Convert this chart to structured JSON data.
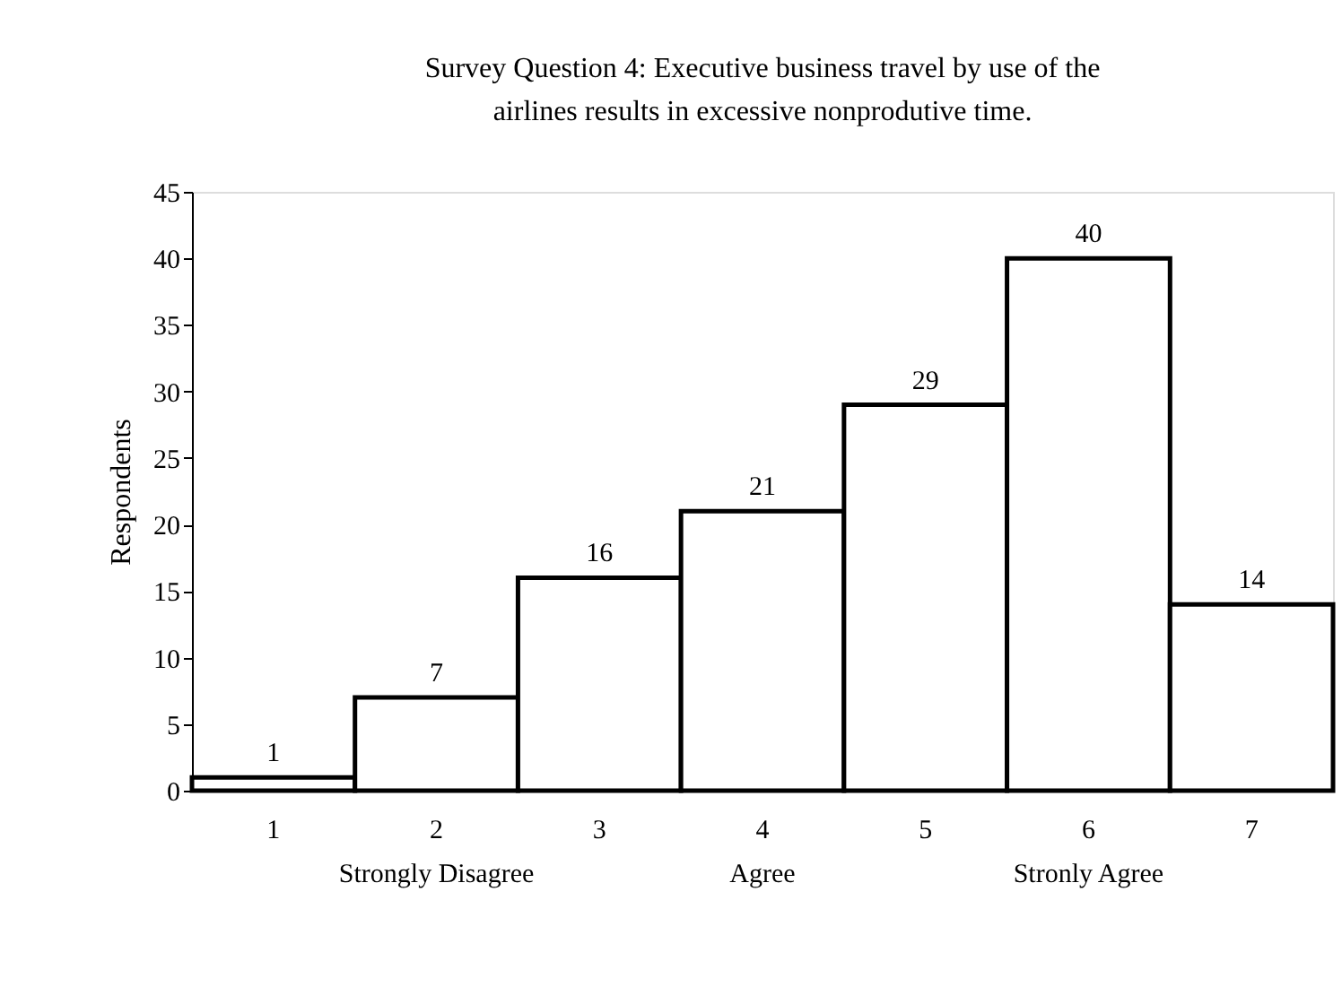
{
  "chart_data": {
    "type": "bar",
    "title": [
      "Survey Question 4: Executive business travel by use of the",
      "airlines results in excessive nonprodutive time."
    ],
    "ylabel": "Respondents",
    "categories": [
      "1",
      "2",
      "3",
      "4",
      "5",
      "6",
      "7"
    ],
    "values": [
      1,
      7,
      16,
      21,
      29,
      40,
      14
    ],
    "color": "#ffffff",
    "data_labels": true,
    "ylim": [
      0,
      45
    ],
    "yticks": [
      0,
      5,
      10,
      15,
      20,
      25,
      30,
      35,
      40,
      45
    ],
    "grid": false,
    "annotations": [
      "Strongly Disagree",
      "Agree",
      "Stronly Agree"
    ]
  }
}
